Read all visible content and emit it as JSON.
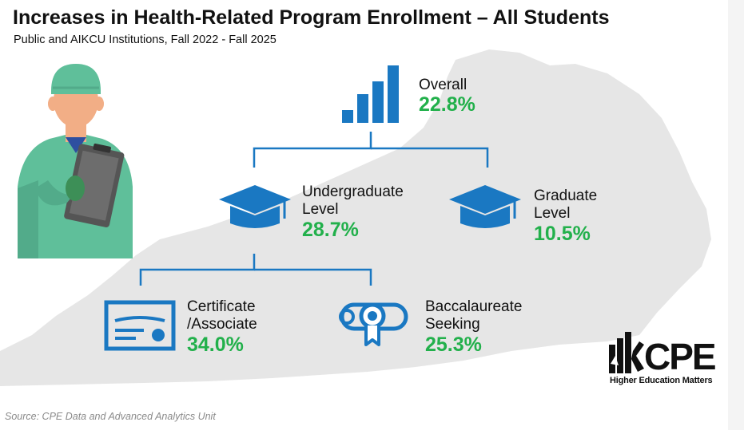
{
  "title": "Increases in Health-Related Program Enrollment – All Students",
  "subtitle": "Public and AIKCU Institutions, Fall 2022 - Fall 2025",
  "overall": {
    "label": "Overall",
    "value": "22.8%"
  },
  "undergraduate": {
    "label_line1": "Undergraduate",
    "label_line2": "Level",
    "value": "28.7%"
  },
  "graduate": {
    "label_line1": "Graduate",
    "label_line2": "Level",
    "value": "10.5%"
  },
  "certificate": {
    "label_line1": "Certificate",
    "label_line2": "/Associate",
    "value": "34.0%"
  },
  "baccalaureate": {
    "label_line1": "Baccalaureate",
    "label_line2": "Seeking",
    "value": "25.3%"
  },
  "logo": {
    "name": "CPE",
    "tagline": "Higher Education Matters"
  },
  "source": "Source: CPE Data and Advanced Analytics Unit",
  "colors": {
    "icon_blue": "#1a78c2",
    "value_green": "#22b04b",
    "map_gray": "#e6e6e6",
    "scrubs": "#5fbf9a"
  },
  "icons": [
    "nurse-illustration",
    "bar-chart-icon",
    "graduation-cap-icon",
    "certificate-icon",
    "diploma-icon",
    "cpe-logo"
  ]
}
